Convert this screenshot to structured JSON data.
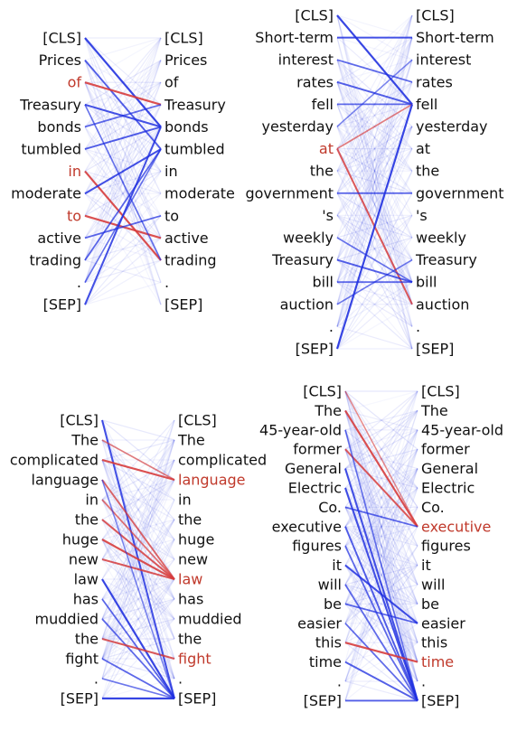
{
  "colors": {
    "text": "#111111",
    "highlight": "#c0392b",
    "blue": "#1f2fe0",
    "red": "#d63a3a"
  },
  "panels": [
    {
      "id": "panel-1",
      "tokens": [
        "[CLS]",
        "Prices",
        "of",
        "Treasury",
        "bonds",
        "tumbled",
        "in",
        "moderate",
        "to",
        "active",
        "trading",
        ".",
        "[SEP]"
      ],
      "left_highlight": [
        2,
        6,
        8
      ],
      "right_highlight": [],
      "strong_edges": [
        {
          "from": 0,
          "to": 4,
          "color": "blue",
          "w": 0.9
        },
        {
          "from": 1,
          "to": 5,
          "color": "blue",
          "w": 0.7
        },
        {
          "from": 2,
          "to": 3,
          "color": "red",
          "w": 0.9
        },
        {
          "from": 3,
          "to": 4,
          "color": "blue",
          "w": 0.8
        },
        {
          "from": 4,
          "to": 3,
          "color": "blue",
          "w": 0.6
        },
        {
          "from": 5,
          "to": 4,
          "color": "blue",
          "w": 0.7
        },
        {
          "from": 6,
          "to": 10,
          "color": "red",
          "w": 0.9
        },
        {
          "from": 7,
          "to": 5,
          "color": "blue",
          "w": 0.8
        },
        {
          "from": 8,
          "to": 9,
          "color": "red",
          "w": 0.9
        },
        {
          "from": 9,
          "to": 8,
          "color": "blue",
          "w": 0.6
        },
        {
          "from": 10,
          "to": 5,
          "color": "blue",
          "w": 0.6
        },
        {
          "from": 11,
          "to": 5,
          "color": "blue",
          "w": 0.5
        },
        {
          "from": 12,
          "to": 4,
          "color": "blue",
          "w": 0.8
        },
        {
          "from": 3,
          "to": 10,
          "color": "blue",
          "w": 0.5
        }
      ]
    },
    {
      "id": "panel-2",
      "tokens": [
        "[CLS]",
        "Short-term",
        "interest",
        "rates",
        "fell",
        "yesterday",
        "at",
        "the",
        "government",
        "'s",
        "weekly",
        "Treasury",
        "bill",
        "auction",
        ".",
        "[SEP]"
      ],
      "left_highlight": [
        6
      ],
      "right_highlight": [],
      "strong_edges": [
        {
          "from": 0,
          "to": 4,
          "color": "blue",
          "w": 0.9
        },
        {
          "from": 1,
          "to": 1,
          "color": "blue",
          "w": 0.8
        },
        {
          "from": 2,
          "to": 3,
          "color": "blue",
          "w": 0.6
        },
        {
          "from": 3,
          "to": 4,
          "color": "blue",
          "w": 0.7
        },
        {
          "from": 4,
          "to": 4,
          "color": "blue",
          "w": 0.6
        },
        {
          "from": 6,
          "to": 13,
          "color": "red",
          "w": 0.8
        },
        {
          "from": 6,
          "to": 4,
          "color": "red",
          "w": 0.5
        },
        {
          "from": 8,
          "to": 8,
          "color": "blue",
          "w": 0.6
        },
        {
          "from": 10,
          "to": 12,
          "color": "blue",
          "w": 0.5
        },
        {
          "from": 11,
          "to": 12,
          "color": "blue",
          "w": 0.7
        },
        {
          "from": 12,
          "to": 12,
          "color": "blue",
          "w": 0.6
        },
        {
          "from": 15,
          "to": 4,
          "color": "blue",
          "w": 0.9
        },
        {
          "from": 13,
          "to": 11,
          "color": "blue",
          "w": 0.5
        },
        {
          "from": 5,
          "to": 2,
          "color": "blue",
          "w": 0.4
        }
      ]
    },
    {
      "id": "panel-3",
      "tokens": [
        "[CLS]",
        "The",
        "complicated",
        "language",
        "in",
        "the",
        "huge",
        "new",
        "law",
        "has",
        "muddied",
        "the",
        "fight",
        ".",
        "[SEP]"
      ],
      "left_highlight": [],
      "right_highlight": [
        3,
        8,
        12
      ],
      "strong_edges": [
        {
          "from": 0,
          "to": 14,
          "color": "blue",
          "w": 0.8
        },
        {
          "from": 1,
          "to": 3,
          "color": "red",
          "w": 0.5
        },
        {
          "from": 2,
          "to": 3,
          "color": "red",
          "w": 0.9
        },
        {
          "from": 3,
          "to": 8,
          "color": "red",
          "w": 0.7
        },
        {
          "from": 4,
          "to": 8,
          "color": "red",
          "w": 0.6
        },
        {
          "from": 5,
          "to": 8,
          "color": "red",
          "w": 0.8
        },
        {
          "from": 6,
          "to": 8,
          "color": "red",
          "w": 0.9
        },
        {
          "from": 7,
          "to": 8,
          "color": "red",
          "w": 0.8
        },
        {
          "from": 8,
          "to": 14,
          "color": "blue",
          "w": 0.9
        },
        {
          "from": 9,
          "to": 14,
          "color": "blue",
          "w": 0.6
        },
        {
          "from": 10,
          "to": 14,
          "color": "blue",
          "w": 0.6
        },
        {
          "from": 11,
          "to": 12,
          "color": "red",
          "w": 0.8
        },
        {
          "from": 12,
          "to": 14,
          "color": "blue",
          "w": 0.6
        },
        {
          "from": 13,
          "to": 14,
          "color": "blue",
          "w": 0.5
        },
        {
          "from": 14,
          "to": 14,
          "color": "blue",
          "w": 0.9
        },
        {
          "from": 3,
          "to": 14,
          "color": "blue",
          "w": 0.4
        }
      ]
    },
    {
      "id": "panel-4",
      "tokens": [
        "[CLS]",
        "The",
        "45-year-old",
        "former",
        "General",
        "Electric",
        "Co.",
        "executive",
        "figures",
        "it",
        "will",
        "be",
        "easier",
        "this",
        "time",
        ".",
        "[SEP]"
      ],
      "left_highlight": [],
      "right_highlight": [
        7,
        14
      ],
      "strong_edges": [
        {
          "from": 1,
          "to": 7,
          "color": "red",
          "w": 0.9
        },
        {
          "from": 3,
          "to": 7,
          "color": "red",
          "w": 0.8
        },
        {
          "from": 0,
          "to": 7,
          "color": "red",
          "w": 0.4
        },
        {
          "from": 6,
          "to": 7,
          "color": "blue",
          "w": 0.6
        },
        {
          "from": 4,
          "to": 16,
          "color": "blue",
          "w": 0.8
        },
        {
          "from": 5,
          "to": 16,
          "color": "blue",
          "w": 0.8
        },
        {
          "from": 7,
          "to": 16,
          "color": "blue",
          "w": 0.7
        },
        {
          "from": 8,
          "to": 16,
          "color": "blue",
          "w": 0.6
        },
        {
          "from": 9,
          "to": 12,
          "color": "blue",
          "w": 0.8
        },
        {
          "from": 10,
          "to": 16,
          "color": "blue",
          "w": 0.6
        },
        {
          "from": 11,
          "to": 12,
          "color": "blue",
          "w": 0.6
        },
        {
          "from": 12,
          "to": 16,
          "color": "blue",
          "w": 0.6
        },
        {
          "from": 13,
          "to": 14,
          "color": "red",
          "w": 0.9
        },
        {
          "from": 14,
          "to": 16,
          "color": "blue",
          "w": 0.7
        },
        {
          "from": 16,
          "to": 16,
          "color": "blue",
          "w": 0.7
        },
        {
          "from": 2,
          "to": 16,
          "color": "blue",
          "w": 0.5
        }
      ]
    }
  ]
}
